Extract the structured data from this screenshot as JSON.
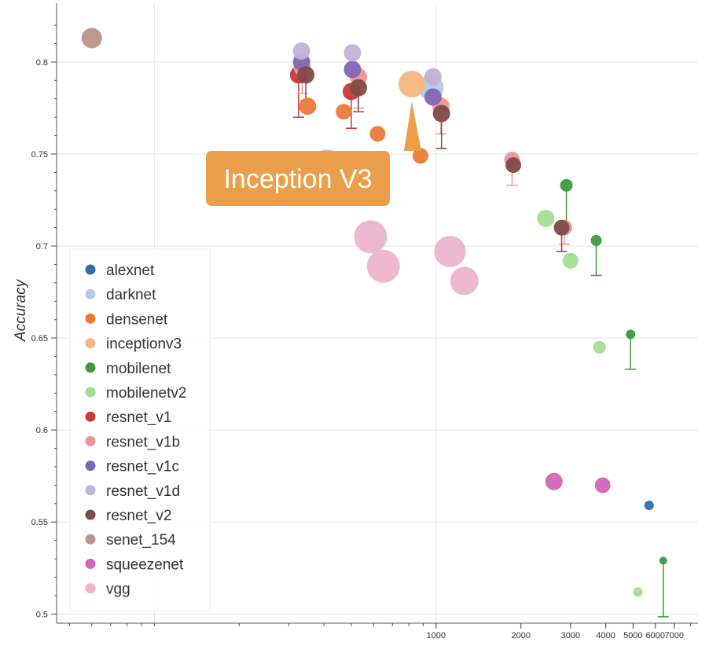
{
  "chart_data": {
    "type": "scatter",
    "title": "",
    "xlabel": "",
    "ylabel": "Accuracy",
    "xscale": "log",
    "xlim": [
      45,
      8500
    ],
    "ylim": [
      0.495,
      0.832
    ],
    "grid": true,
    "legend_position": "bottom-left",
    "y_ticks": [
      "0.5",
      "0.55",
      "0.6",
      "0.65",
      "0.7",
      "0.75",
      "0.8"
    ],
    "x_ticks": [
      "1000",
      "2000",
      "3000",
      "4000",
      "5000",
      "6000",
      "7000"
    ],
    "callout": {
      "text": "Inception V3",
      "x": 820,
      "y": 0.788,
      "color": "#eb9f4b"
    },
    "series": [
      {
        "name": "alexnet",
        "color": "#2e6fa7",
        "points": [
          {
            "x": 5700,
            "y": 0.559,
            "r": 6
          }
        ]
      },
      {
        "name": "darknet",
        "color": "#b2cbe6",
        "points": [
          {
            "x": 960,
            "y": 0.786,
            "r": 16
          }
        ]
      },
      {
        "name": "densenet",
        "color": "#ea7b3a",
        "points": [
          {
            "x": 350,
            "y": 0.776,
            "r": 11
          },
          {
            "x": 470,
            "y": 0.773,
            "r": 10
          },
          {
            "x": 620,
            "y": 0.761,
            "r": 10
          },
          {
            "x": 880,
            "y": 0.749,
            "r": 10
          }
        ]
      },
      {
        "name": "inceptionv3",
        "color": "#f5b680",
        "points": [
          {
            "x": 820,
            "y": 0.788,
            "r": 17
          }
        ]
      },
      {
        "name": "mobilenet",
        "color": "#3f9a3d",
        "points": [
          {
            "x": 2900,
            "y": 0.733,
            "r": 8,
            "err_low": 0.709
          },
          {
            "x": 3700,
            "y": 0.703,
            "r": 7,
            "err_low": 0.684
          },
          {
            "x": 4900,
            "y": 0.652,
            "r": 6,
            "err_low": 0.633
          },
          {
            "x": 6400,
            "y": 0.529,
            "r": 5,
            "err_low": 0.4985
          }
        ]
      },
      {
        "name": "mobilenetv2",
        "color": "#a3dd93",
        "points": [
          {
            "x": 2450,
            "y": 0.715,
            "r": 11
          },
          {
            "x": 3000,
            "y": 0.692,
            "r": 10
          },
          {
            "x": 3800,
            "y": 0.645,
            "r": 8
          },
          {
            "x": 5200,
            "y": 0.512,
            "r": 6
          }
        ]
      },
      {
        "name": "resnet_v1",
        "color": "#c9393c",
        "points": [
          {
            "x": 325,
            "y": 0.793,
            "r": 11,
            "err_low": 0.77
          },
          {
            "x": 500,
            "y": 0.784,
            "r": 11,
            "err_low": 0.764
          }
        ]
      },
      {
        "name": "resnet_v1b",
        "color": "#ee9696",
        "points": [
          {
            "x": 335,
            "y": 0.797,
            "r": 11,
            "err_low": 0.783
          },
          {
            "x": 530,
            "y": 0.792,
            "r": 11,
            "err_low": 0.775
          },
          {
            "x": 1040,
            "y": 0.776,
            "r": 11,
            "err_low": 0.761
          },
          {
            "x": 1860,
            "y": 0.747,
            "r": 10,
            "err_low": 0.733
          },
          {
            "x": 2850,
            "y": 0.71,
            "r": 10,
            "err_low": 0.701
          }
        ]
      },
      {
        "name": "resnet_v1c",
        "color": "#8365b6",
        "points": [
          {
            "x": 333,
            "y": 0.8,
            "r": 11
          },
          {
            "x": 505,
            "y": 0.796,
            "r": 11
          },
          {
            "x": 975,
            "y": 0.781,
            "r": 11
          }
        ]
      },
      {
        "name": "resnet_v1d",
        "color": "#c1b2d8",
        "points": [
          {
            "x": 333,
            "y": 0.806,
            "r": 11
          },
          {
            "x": 505,
            "y": 0.805,
            "r": 11
          },
          {
            "x": 975,
            "y": 0.792,
            "r": 11
          }
        ]
      },
      {
        "name": "resnet_v2",
        "color": "#7e4b46",
        "points": [
          {
            "x": 345,
            "y": 0.793,
            "r": 11,
            "err_low": 0.779
          },
          {
            "x": 530,
            "y": 0.786,
            "r": 11,
            "err_low": 0.773
          },
          {
            "x": 1045,
            "y": 0.772,
            "r": 11,
            "err_low": 0.753
          },
          {
            "x": 1880,
            "y": 0.744,
            "r": 10
          },
          {
            "x": 2790,
            "y": 0.71,
            "r": 10,
            "err_low": 0.697
          }
        ]
      },
      {
        "name": "senet_154",
        "color": "#bd948b",
        "points": [
          {
            "x": 60,
            "y": 0.813,
            "r": 13
          }
        ]
      },
      {
        "name": "squeezenet",
        "color": "#d364b9",
        "points": [
          {
            "x": 2620,
            "y": 0.572,
            "r": 11
          },
          {
            "x": 3900,
            "y": 0.57,
            "r": 10
          }
        ]
      },
      {
        "name": "vgg",
        "color": "#ecb4ce",
        "points": [
          {
            "x": 410,
            "y": 0.743,
            "r": 22
          },
          {
            "x": 445,
            "y": 0.74,
            "r": 22
          },
          {
            "x": 585,
            "y": 0.705,
            "r": 21
          },
          {
            "x": 650,
            "y": 0.689,
            "r": 21
          },
          {
            "x": 1120,
            "y": 0.697,
            "r": 20
          },
          {
            "x": 1260,
            "y": 0.681,
            "r": 18
          }
        ]
      }
    ]
  }
}
